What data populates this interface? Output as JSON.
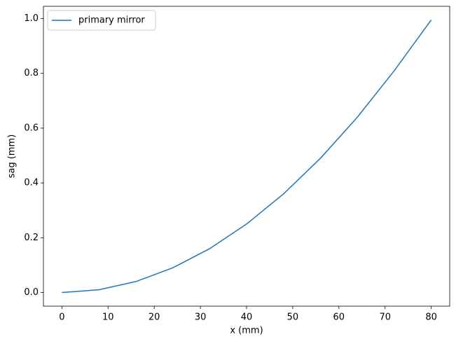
{
  "chart_data": {
    "type": "line",
    "xlabel": "x (mm)",
    "ylabel": "sag (mm)",
    "x": [
      0,
      8,
      16,
      24,
      32,
      40,
      48,
      56,
      64,
      72,
      80
    ],
    "series": [
      {
        "name": "primary mirror",
        "color": "#1f77b4",
        "values": [
          0,
          0.01,
          0.04,
          0.09,
          0.16,
          0.25,
          0.36,
          0.49,
          0.64,
          0.81,
          0.995
        ]
      }
    ],
    "xlim": [
      -4,
      84
    ],
    "xticks": [
      0,
      10,
      20,
      30,
      40,
      50,
      60,
      70,
      80
    ],
    "ylim": [
      -0.04975,
      1.04475
    ],
    "yticks": [
      {
        "value": 0,
        "label": "0.0"
      },
      0.2,
      0.4,
      0.6,
      0.8,
      {
        "value": 1,
        "label": "1.0"
      }
    ],
    "legend": "upper left"
  }
}
